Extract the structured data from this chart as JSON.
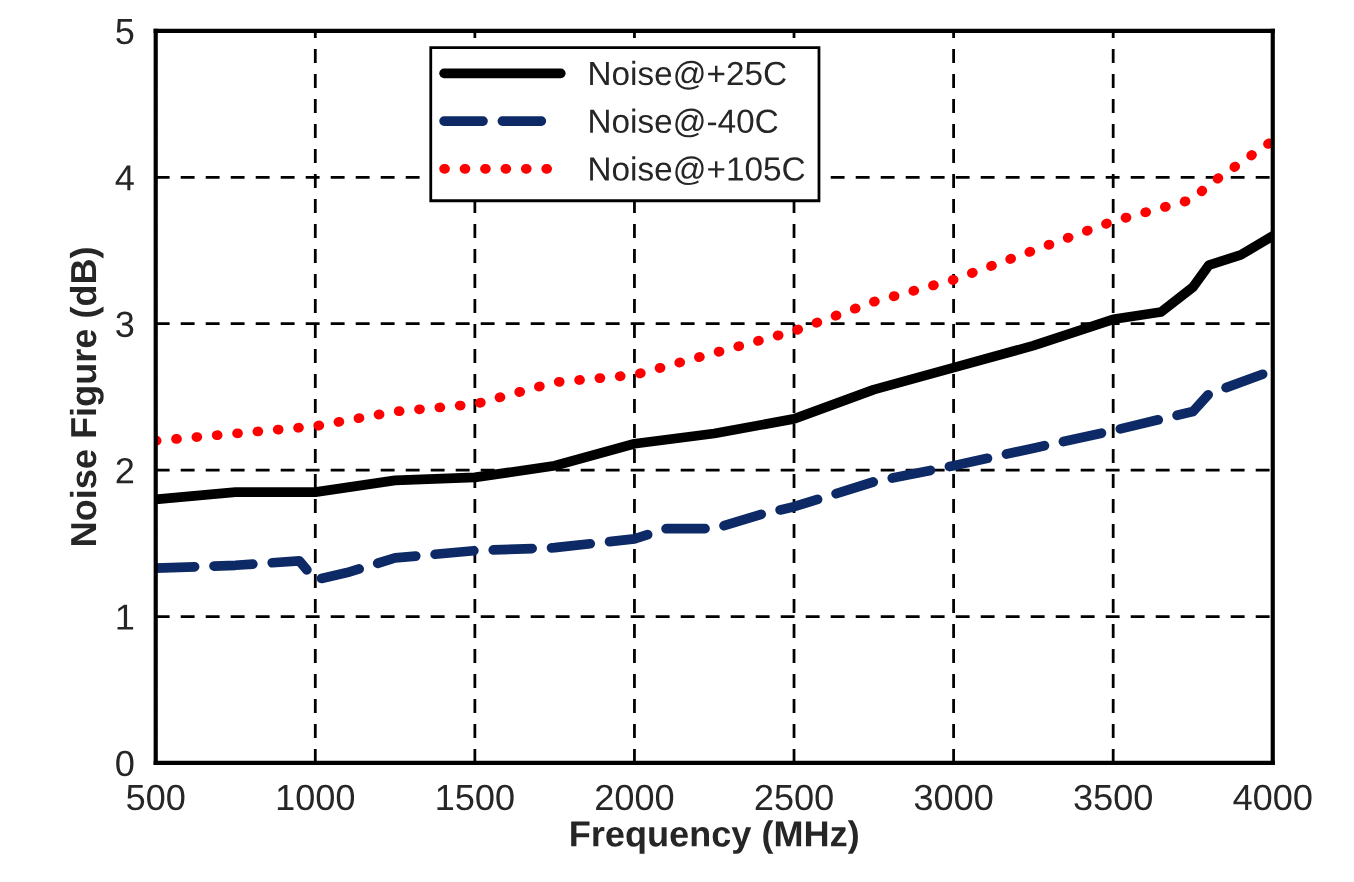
{
  "chart_data": {
    "type": "line",
    "xlabel": "Frequency (MHz)",
    "ylabel": "Noise Figure (dB)",
    "xlim": [
      500,
      4000
    ],
    "xticks": [
      500,
      1000,
      1500,
      2000,
      2500,
      3000,
      3500,
      4000
    ],
    "ylim": [
      0,
      5
    ],
    "yticks": [
      0,
      1,
      2,
      3,
      4,
      5
    ],
    "grid": true,
    "legend": "top",
    "marker": "none",
    "series": [
      {
        "name": "Noise@+25C",
        "color": "#000000",
        "line_style": "solid",
        "x": [
          500,
          750,
          1000,
          1250,
          1500,
          1750,
          2000,
          2250,
          2500,
          2750,
          3000,
          3250,
          3500,
          3650,
          3750,
          3800,
          3900,
          4000
        ],
        "values": [
          1.8,
          1.85,
          1.85,
          1.93,
          1.95,
          2.03,
          2.18,
          2.25,
          2.35,
          2.55,
          2.7,
          2.85,
          3.03,
          3.08,
          3.25,
          3.4,
          3.47,
          3.6
        ]
      },
      {
        "name": "Noise@-40C",
        "color": "#0d2a66",
        "line_style": "dashed",
        "x": [
          500,
          750,
          950,
          1000,
          1100,
          1250,
          1500,
          1750,
          2000,
          2100,
          2250,
          2400,
          2500,
          2750,
          3000,
          3250,
          3500,
          3750,
          3800,
          4000
        ],
        "values": [
          1.33,
          1.35,
          1.38,
          1.25,
          1.3,
          1.4,
          1.45,
          1.47,
          1.53,
          1.6,
          1.6,
          1.7,
          1.75,
          1.92,
          2.03,
          2.15,
          2.27,
          2.4,
          2.52,
          2.68
        ]
      },
      {
        "name": "Noise@+105C",
        "color": "#ff0000",
        "line_style": "dotted",
        "x": [
          500,
          750,
          1000,
          1250,
          1500,
          1750,
          2000,
          2250,
          2500,
          2750,
          3000,
          3250,
          3500,
          3750,
          3800,
          4000
        ],
        "values": [
          2.2,
          2.25,
          2.3,
          2.4,
          2.45,
          2.6,
          2.65,
          2.8,
          2.95,
          3.15,
          3.3,
          3.5,
          3.7,
          3.85,
          3.95,
          4.25
        ]
      }
    ]
  }
}
